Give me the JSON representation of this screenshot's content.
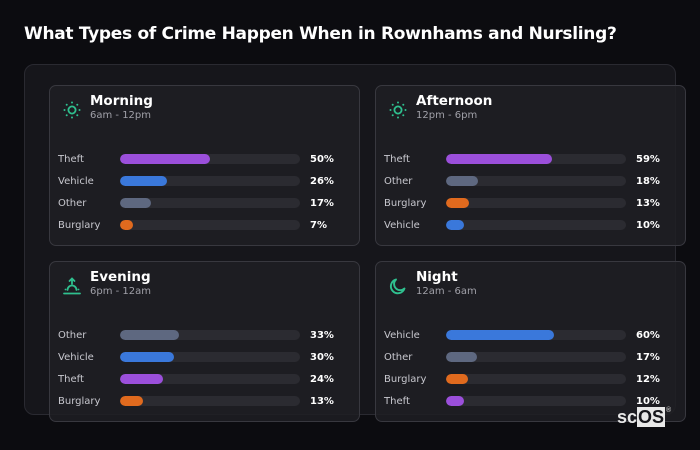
{
  "title": "What Types of Crime Happen When in Rownhams and Nursling?",
  "colors": {
    "Theft": "#9b4fdb",
    "Vehicle": "#3a78db",
    "Other": "#5e6880",
    "Burglary": "#e06a1e",
    "accent_icon": "#2fc08f"
  },
  "cards": [
    {
      "id": "morning",
      "title": "Morning",
      "subtitle": "6am - 12pm",
      "icon": "sun-icon",
      "rows": [
        {
          "label": "Theft",
          "value": 50,
          "display": "50%"
        },
        {
          "label": "Vehicle",
          "value": 26,
          "display": "26%"
        },
        {
          "label": "Other",
          "value": 17,
          "display": "17%"
        },
        {
          "label": "Burglary",
          "value": 7,
          "display": "7%"
        }
      ]
    },
    {
      "id": "afternoon",
      "title": "Afternoon",
      "subtitle": "12pm - 6pm",
      "icon": "sun-icon",
      "rows": [
        {
          "label": "Theft",
          "value": 59,
          "display": "59%"
        },
        {
          "label": "Other",
          "value": 18,
          "display": "18%"
        },
        {
          "label": "Burglary",
          "value": 13,
          "display": "13%"
        },
        {
          "label": "Vehicle",
          "value": 10,
          "display": "10%"
        }
      ]
    },
    {
      "id": "evening",
      "title": "Evening",
      "subtitle": "6pm - 12am",
      "icon": "sunset-icon",
      "rows": [
        {
          "label": "Other",
          "value": 33,
          "display": "33%"
        },
        {
          "label": "Vehicle",
          "value": 30,
          "display": "30%"
        },
        {
          "label": "Theft",
          "value": 24,
          "display": "24%"
        },
        {
          "label": "Burglary",
          "value": 13,
          "display": "13%"
        }
      ]
    },
    {
      "id": "night",
      "title": "Night",
      "subtitle": "12am - 6am",
      "icon": "moon-icon",
      "rows": [
        {
          "label": "Vehicle",
          "value": 60,
          "display": "60%"
        },
        {
          "label": "Other",
          "value": 17,
          "display": "17%"
        },
        {
          "label": "Burglary",
          "value": 12,
          "display": "12%"
        },
        {
          "label": "Theft",
          "value": 10,
          "display": "10%"
        }
      ]
    }
  ],
  "logo": {
    "sc": "sc",
    "os": "OS",
    "reg": "®"
  }
}
